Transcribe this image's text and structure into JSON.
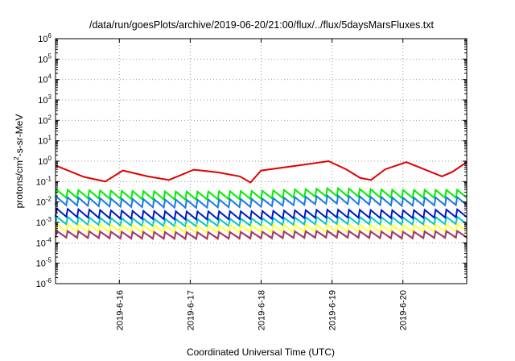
{
  "chart_data": {
    "type": "line",
    "title": "/data/run/goesPlots/archive/2019-06-20/21:00/flux/../flux/5daysMarsFluxes.txt",
    "xlabel": "Coordinated Universal Time (UTC)",
    "ylabel": "protons/cm²-s-sr-MeV",
    "ylabel_parts": [
      "protons/cm",
      "2",
      "-s-sr-MeV"
    ],
    "x_range": [
      15.1,
      20.9
    ],
    "x_unit": "June 2019 (day of month)",
    "x_ticks": [
      {
        "value": 16,
        "label": "2019-6-16"
      },
      {
        "value": 17,
        "label": "2019-6-17"
      },
      {
        "value": 18,
        "label": "2019-6-18"
      },
      {
        "value": 19,
        "label": "2019-6-19"
      },
      {
        "value": 20,
        "label": "2019-6-20"
      }
    ],
    "y_scale": "log",
    "y_range": [
      1e-06,
      1000000.0
    ],
    "y_ticks": [
      {
        "value": 1e-06,
        "base": "10",
        "exp": "-6"
      },
      {
        "value": 1e-05,
        "base": "10",
        "exp": "-5"
      },
      {
        "value": 0.0001,
        "base": "10",
        "exp": "-4"
      },
      {
        "value": 0.001,
        "base": "10",
        "exp": "-3"
      },
      {
        "value": 0.01,
        "base": "10",
        "exp": "-2"
      },
      {
        "value": 0.1,
        "base": "10",
        "exp": "-1"
      },
      {
        "value": 1,
        "base": "10",
        "exp": "0"
      },
      {
        "value": 10.0,
        "base": "10",
        "exp": "1"
      },
      {
        "value": 100.0,
        "base": "10",
        "exp": "2"
      },
      {
        "value": 1000.0,
        "base": "10",
        "exp": "3"
      },
      {
        "value": 10000.0,
        "base": "10",
        "exp": "4"
      },
      {
        "value": 100000.0,
        "base": "10",
        "exp": "5"
      },
      {
        "value": 1000000.0,
        "base": "10",
        "exp": "6"
      }
    ],
    "grid": true,
    "legend": "none",
    "series": [
      {
        "color": "#e00000",
        "kind": "sawtooth",
        "low": 0.25,
        "high": 0.5,
        "teeth": 4,
        "anchors": [
          [
            15.1,
            0.62
          ],
          [
            15.5,
            0.17
          ],
          [
            15.8,
            0.1
          ],
          [
            16.05,
            0.35
          ],
          [
            16.4,
            0.18
          ],
          [
            16.7,
            0.12
          ],
          [
            17.05,
            0.38
          ],
          [
            17.4,
            0.28
          ],
          [
            17.7,
            0.18
          ],
          [
            17.85,
            0.09
          ],
          [
            18.0,
            0.35
          ],
          [
            18.5,
            0.6
          ],
          [
            18.95,
            1.0
          ],
          [
            19.2,
            0.4
          ],
          [
            19.4,
            0.15
          ],
          [
            19.55,
            0.12
          ],
          [
            19.75,
            0.4
          ],
          [
            20.05,
            0.9
          ],
          [
            20.3,
            0.4
          ],
          [
            20.55,
            0.18
          ],
          [
            20.7,
            0.3
          ],
          [
            20.9,
            0.9
          ]
        ]
      },
      {
        "color": "#00ee00",
        "kind": "sawtooth",
        "low": 0.35,
        "high": 0.6,
        "teeth": 38,
        "anchors": [
          [
            15.1,
            0.025
          ],
          [
            16,
            0.022
          ],
          [
            17,
            0.02
          ],
          [
            18,
            0.022
          ],
          [
            19,
            0.03
          ],
          [
            20,
            0.024
          ],
          [
            20.9,
            0.025
          ]
        ]
      },
      {
        "color": "#1a7ae8",
        "kind": "sawtooth",
        "low": 0.35,
        "high": 0.6,
        "teeth": 38,
        "anchors": [
          [
            15.1,
            0.011
          ],
          [
            16,
            0.009
          ],
          [
            17,
            0.008
          ],
          [
            18,
            0.009
          ],
          [
            19,
            0.013
          ],
          [
            20,
            0.01
          ],
          [
            20.9,
            0.011
          ]
        ]
      },
      {
        "color": "#00c8c8",
        "kind": "sawtooth",
        "low": 0.3,
        "high": 0.6,
        "teeth": 38,
        "anchors": [
          [
            15.1,
            0.0012
          ],
          [
            16,
            0.001
          ],
          [
            17,
            0.0009
          ],
          [
            18,
            0.001
          ],
          [
            19,
            0.0012
          ],
          [
            20,
            0.0011
          ],
          [
            20.9,
            0.0012
          ]
        ]
      },
      {
        "color": "#0018c8",
        "kind": "sawtooth",
        "low": 0.3,
        "high": 0.7,
        "teeth": 38,
        "anchors": [
          [
            15.1,
            0.0028
          ],
          [
            16,
            0.0022
          ],
          [
            17,
            0.002
          ],
          [
            18,
            0.0021
          ],
          [
            19,
            0.0025
          ],
          [
            20,
            0.0023
          ],
          [
            20.9,
            0.0026
          ]
        ]
      },
      {
        "color": "#ffff33",
        "kind": "sawtooth",
        "low": 0.2,
        "high": 0.9,
        "teeth": 38,
        "anchors": [
          [
            15.1,
            0.00045
          ],
          [
            16,
            0.0004
          ],
          [
            17,
            0.00038
          ],
          [
            18,
            0.0004
          ],
          [
            19,
            0.00042
          ],
          [
            20,
            0.0004
          ],
          [
            20.9,
            0.00045
          ]
        ]
      },
      {
        "color": "#e09020",
        "kind": "sawtooth",
        "low": 0.12,
        "high": 0.95,
        "teeth": 38,
        "anchors": [
          [
            15.1,
            0.0002
          ],
          [
            16,
            0.00018
          ],
          [
            17,
            0.00017
          ],
          [
            18,
            0.00018
          ],
          [
            19,
            0.0002
          ],
          [
            20,
            0.00018
          ],
          [
            20.9,
            0.0002
          ]
        ]
      },
      {
        "color": "#a03880",
        "kind": "sawtooth",
        "low": 0.06,
        "high": 0.9,
        "teeth": 38,
        "anchors": [
          [
            15.1,
            0.0002
          ],
          [
            16,
            0.00018
          ],
          [
            17,
            0.00017
          ],
          [
            18,
            0.00018
          ],
          [
            19,
            0.0002
          ],
          [
            20,
            0.00018
          ],
          [
            20.9,
            0.0002
          ]
        ]
      }
    ]
  }
}
